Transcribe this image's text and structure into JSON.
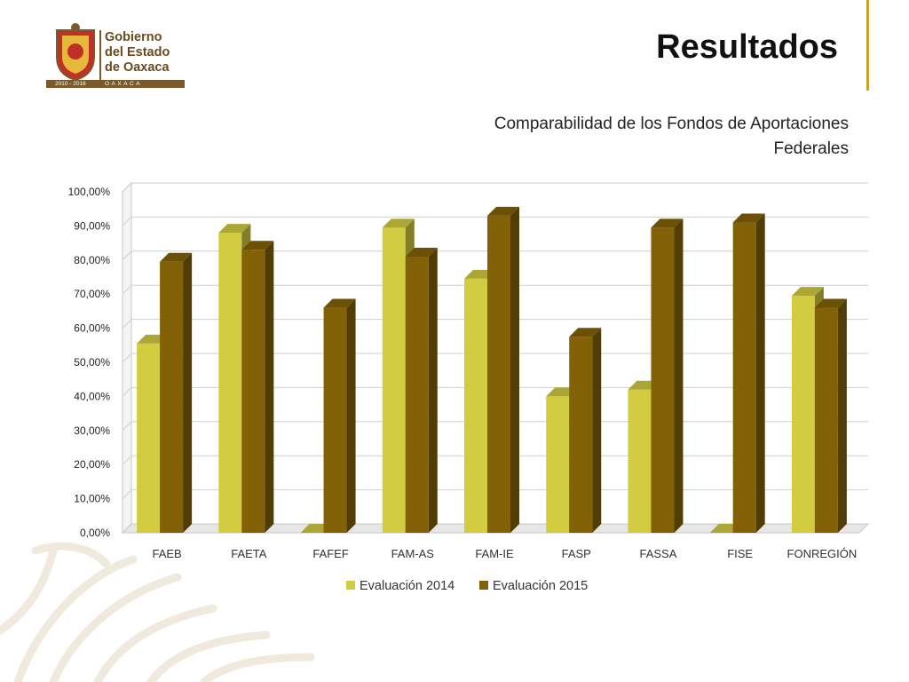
{
  "header": {
    "logo_lines": [
      "Gobierno",
      "del Estado",
      "de Oaxaca"
    ],
    "logo_years": "2010 - 2016",
    "logo_state": "OAXACA",
    "title": "Resultados",
    "subtitle_lines": [
      "Comparabilidad de los Fondos de Aportaciones",
      "Federales"
    ]
  },
  "colors": {
    "series_2014": "#d2cc40",
    "series_2015": "#836106",
    "accent": "#c9a227"
  },
  "chart_data": {
    "type": "bar",
    "title": "",
    "xlabel": "",
    "ylabel": "",
    "ylim": [
      0,
      100
    ],
    "y_ticks": [
      "0,00%",
      "10,00%",
      "20,00%",
      "30,00%",
      "40,00%",
      "50,00%",
      "60,00%",
      "70,00%",
      "80,00%",
      "90,00%",
      "100,00%"
    ],
    "grid": true,
    "legend_position": "bottom",
    "categories": [
      "FAEB",
      "FAETA",
      "FAFEF",
      "FAM-AS",
      "FAM-IE",
      "FASP",
      "FASSA",
      "FISE",
      "FONREGIÓN"
    ],
    "series": [
      {
        "name": "Evaluación 2014",
        "values": [
          55.5,
          88,
          0,
          89.5,
          74.5,
          40,
          42,
          0,
          69.5
        ]
      },
      {
        "name": "Evaluación 2015",
        "values": [
          79.5,
          83,
          66,
          81,
          93,
          57.5,
          89.5,
          91,
          66
        ]
      }
    ]
  }
}
